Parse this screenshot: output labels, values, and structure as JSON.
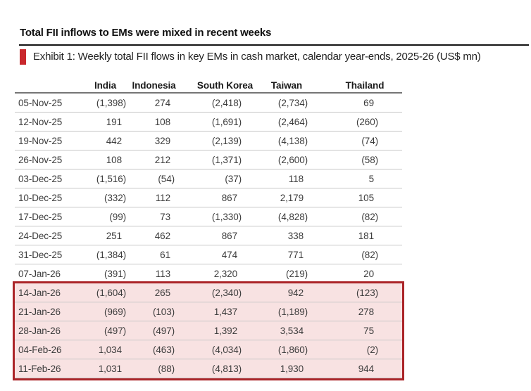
{
  "header": {
    "section_heading": "Total FII inflows to EMs were mixed in recent weeks",
    "exhibit_title": "Exhibit 1: Weekly total FII flows in key EMs in cash market, calendar year-ends, 2025-26 (US$ mn)"
  },
  "colors": {
    "exhibit_marker_red": "#c9282d",
    "highlight_border_red": "#ab2428",
    "highlight_fill_pink": "#f8e2e2"
  },
  "chart_data": {
    "type": "table",
    "title": "Exhibit 1: Weekly total FII flows in key EMs in cash market, calendar year-ends, 2025-26 (US$ mn)",
    "unit": "US$ mn",
    "negative_format": "parentheses",
    "row_label_column": "week-ending date",
    "columns": [
      "India",
      "Indonesia",
      "South Korea",
      "Taiwan",
      "Thailand"
    ],
    "rows": [
      {
        "date": "05-Nov-25",
        "values": [
          "(1,398)",
          "274",
          "(2,418)",
          "(2,734)",
          "69"
        ],
        "highlight": false
      },
      {
        "date": "12-Nov-25",
        "values": [
          "191",
          "108",
          "(1,691)",
          "(2,464)",
          "(260)"
        ],
        "highlight": false
      },
      {
        "date": "19-Nov-25",
        "values": [
          "442",
          "329",
          "(2,139)",
          "(4,138)",
          "(74)"
        ],
        "highlight": false
      },
      {
        "date": "26-Nov-25",
        "values": [
          "108",
          "212",
          "(1,371)",
          "(2,600)",
          "(58)"
        ],
        "highlight": false
      },
      {
        "date": "03-Dec-25",
        "values": [
          "(1,516)",
          "(54)",
          "(37)",
          "118",
          "5"
        ],
        "highlight": false
      },
      {
        "date": "10-Dec-25",
        "values": [
          "(332)",
          "112",
          "867",
          "2,179",
          "105"
        ],
        "highlight": false
      },
      {
        "date": "17-Dec-25",
        "values": [
          "(99)",
          "73",
          "(1,330)",
          "(4,828)",
          "(82)"
        ],
        "highlight": false
      },
      {
        "date": "24-Dec-25",
        "values": [
          "251",
          "462",
          "867",
          "338",
          "181"
        ],
        "highlight": false
      },
      {
        "date": "31-Dec-25",
        "values": [
          "(1,384)",
          "61",
          "474",
          "771",
          "(82)"
        ],
        "highlight": false
      },
      {
        "date": "07-Jan-26",
        "values": [
          "(391)",
          "113",
          "2,320",
          "(219)",
          "20"
        ],
        "highlight": false
      },
      {
        "date": "14-Jan-26",
        "values": [
          "(1,604)",
          "265",
          "(2,340)",
          "942",
          "(123)"
        ],
        "highlight": true
      },
      {
        "date": "21-Jan-26",
        "values": [
          "(969)",
          "(103)",
          "1,437",
          "(1,189)",
          "278"
        ],
        "highlight": true
      },
      {
        "date": "28-Jan-26",
        "values": [
          "(497)",
          "(497)",
          "1,392",
          "3,534",
          "75"
        ],
        "highlight": true
      },
      {
        "date": "04-Feb-26",
        "values": [
          "1,034",
          "(463)",
          "(4,034)",
          "(1,860)",
          "(2)"
        ],
        "highlight": true
      },
      {
        "date": "11-Feb-26",
        "values": [
          "1,031",
          "(88)",
          "(4,813)",
          "1,930",
          "944"
        ],
        "highlight": true
      }
    ]
  }
}
